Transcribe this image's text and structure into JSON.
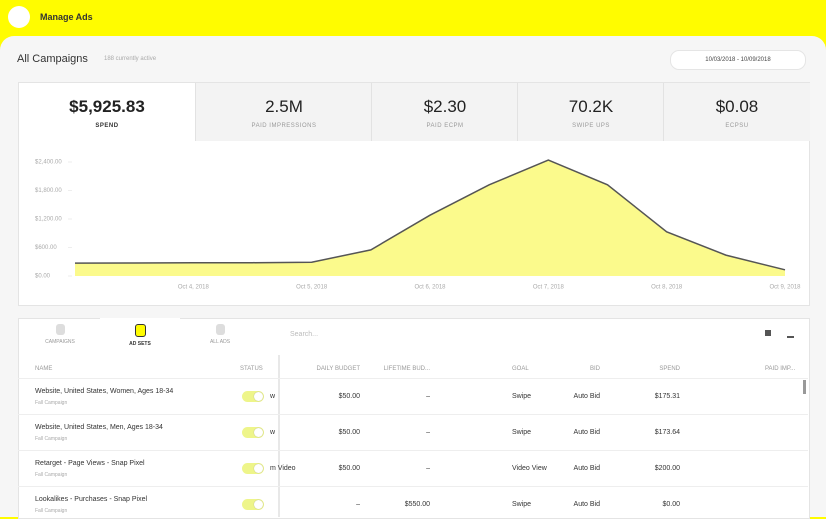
{
  "header": {
    "title": "Manage Ads"
  },
  "campaigns": {
    "title": "All Campaigns",
    "subtitle": "188 currently active",
    "date_range": "10/03/2018 - 10/09/2018"
  },
  "metrics": [
    {
      "value": "$5,925.83",
      "label": "SPEND"
    },
    {
      "value": "2.5M",
      "label": "PAID IMPRESSIONS"
    },
    {
      "value": "$2.30",
      "label": "PAID ECPM"
    },
    {
      "value": "70.2K",
      "label": "SWIPE UPS"
    },
    {
      "value": "$0.08",
      "label": "ECPSU"
    }
  ],
  "chart": {
    "type": "area",
    "color": "#fbfa8c",
    "categories": [
      null,
      null,
      "Oct 4, 2018",
      null,
      "Oct 5, 2018",
      null,
      "Oct 6, 2018",
      null,
      "Oct 7, 2018",
      null,
      "Oct 8, 2018",
      null,
      "Oct 9, 2018"
    ],
    "values": [
      270,
      275,
      278,
      280,
      290,
      550,
      1280,
      1920,
      2440,
      1920,
      930,
      440,
      130
    ],
    "ylim": [
      0,
      2600
    ],
    "yticks": [
      {
        "value": 0,
        "label": "$0.00"
      },
      {
        "value": 600,
        "label": "$600.00"
      },
      {
        "value": 1200,
        "label": "$1,200.00"
      },
      {
        "value": 1800,
        "label": "$1,800.00"
      },
      {
        "value": 2400,
        "label": "$2,400.00"
      }
    ]
  },
  "tabs": [
    "CAMPAIGNS",
    "AD SETS",
    "ALL ADS"
  ],
  "search": "Search...",
  "table": {
    "columns": [
      "NAME",
      "STATUS",
      "",
      "DAILY BUDGET",
      "LIFETIME BUD...",
      "GOAL",
      "BID",
      "SPEND",
      "PAID IMP..."
    ],
    "rows": [
      {
        "name": "Website, United States, Women, Ages 18-34",
        "campaign": "Fall Campaign",
        "cells": [
          "w",
          "$50.00",
          "–",
          "Swipe",
          "Auto Bid",
          "$175.31"
        ]
      },
      {
        "name": "Website, United States, Men, Ages 18-34",
        "campaign": "Fall Campaign",
        "cells": [
          "w",
          "$50.00",
          "–",
          "Swipe",
          "Auto Bid",
          "$173.64"
        ]
      },
      {
        "name": "Retarget - Page Views - Snap Pixel",
        "campaign": "Fall Campaign",
        "cells": [
          "m Video",
          "$50.00",
          "–",
          "Video View",
          "Auto Bid",
          "$200.00"
        ]
      },
      {
        "name": "Lookalikes - Purchases - Snap Pixel",
        "campaign": "Fall Campaign",
        "cells": [
          "",
          "–",
          "$550.00",
          "Swipe",
          "Auto Bid",
          "$0.00"
        ]
      }
    ]
  }
}
